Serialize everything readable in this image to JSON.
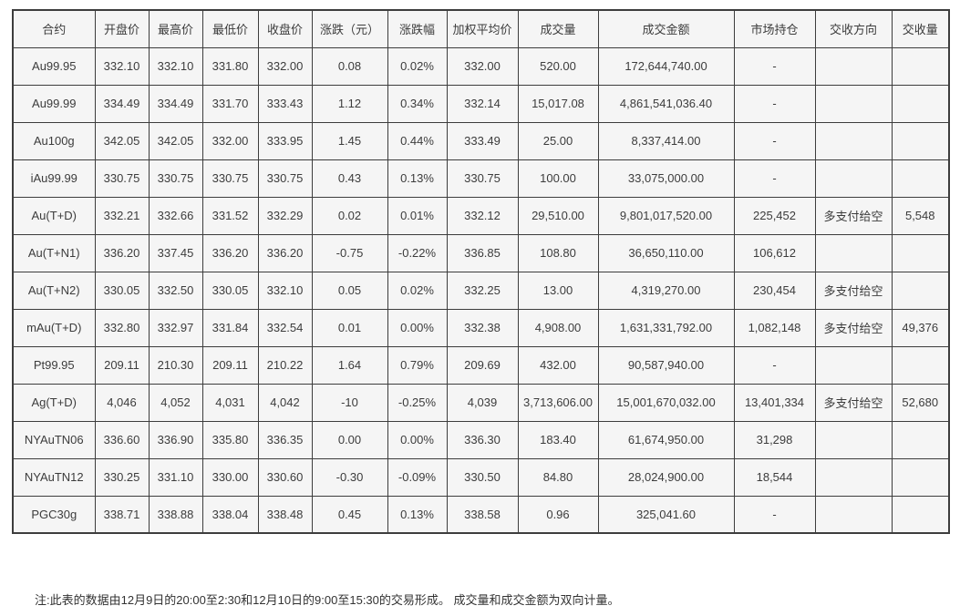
{
  "table": {
    "columns": [
      "合约",
      "开盘价",
      "最高价",
      "最低价",
      "收盘价",
      "涨跌（元）",
      "涨跌幅",
      "加权平均价",
      "成交量",
      "成交金额",
      "市场持仓",
      "交收方向",
      "交收量"
    ],
    "rows": [
      [
        "Au99.95",
        "332.10",
        "332.10",
        "331.80",
        "332.00",
        "0.08",
        "0.02%",
        "332.00",
        "520.00",
        "172,644,740.00",
        "-",
        "",
        ""
      ],
      [
        "Au99.99",
        "334.49",
        "334.49",
        "331.70",
        "333.43",
        "1.12",
        "0.34%",
        "332.14",
        "15,017.08",
        "4,861,541,036.40",
        "-",
        "",
        ""
      ],
      [
        "Au100g",
        "342.05",
        "342.05",
        "332.00",
        "333.95",
        "1.45",
        "0.44%",
        "333.49",
        "25.00",
        "8,337,414.00",
        "-",
        "",
        ""
      ],
      [
        "iAu99.99",
        "330.75",
        "330.75",
        "330.75",
        "330.75",
        "0.43",
        "0.13%",
        "330.75",
        "100.00",
        "33,075,000.00",
        "-",
        "",
        ""
      ],
      [
        "Au(T+D)",
        "332.21",
        "332.66",
        "331.52",
        "332.29",
        "0.02",
        "0.01%",
        "332.12",
        "29,510.00",
        "9,801,017,520.00",
        "225,452",
        "多支付给空",
        "5,548"
      ],
      [
        "Au(T+N1)",
        "336.20",
        "337.45",
        "336.20",
        "336.20",
        "-0.75",
        "-0.22%",
        "336.85",
        "108.80",
        "36,650,110.00",
        "106,612",
        "",
        ""
      ],
      [
        "Au(T+N2)",
        "330.05",
        "332.50",
        "330.05",
        "332.10",
        "0.05",
        "0.02%",
        "332.25",
        "13.00",
        "4,319,270.00",
        "230,454",
        "多支付给空",
        ""
      ],
      [
        "mAu(T+D)",
        "332.80",
        "332.97",
        "331.84",
        "332.54",
        "0.01",
        "0.00%",
        "332.38",
        "4,908.00",
        "1,631,331,792.00",
        "1,082,148",
        "多支付给空",
        "49,376"
      ],
      [
        "Pt99.95",
        "209.11",
        "210.30",
        "209.11",
        "210.22",
        "1.64",
        "0.79%",
        "209.69",
        "432.00",
        "90,587,940.00",
        "-",
        "",
        ""
      ],
      [
        "Ag(T+D)",
        "4,046",
        "4,052",
        "4,031",
        "4,042",
        "-10",
        "-0.25%",
        "4,039",
        "3,713,606.00",
        "15,001,670,032.00",
        "13,401,334",
        "多支付给空",
        "52,680"
      ],
      [
        "NYAuTN06",
        "336.60",
        "336.90",
        "335.80",
        "336.35",
        "0.00",
        "0.00%",
        "336.30",
        "183.40",
        "61,674,950.00",
        "31,298",
        "",
        ""
      ],
      [
        "NYAuTN12",
        "330.25",
        "331.10",
        "330.00",
        "330.60",
        "-0.30",
        "-0.09%",
        "330.50",
        "84.80",
        "28,024,900.00",
        "18,544",
        "",
        ""
      ],
      [
        "PGC30g",
        "338.71",
        "338.88",
        "338.04",
        "338.48",
        "0.45",
        "0.13%",
        "338.58",
        "0.96",
        "325,041.60",
        "-",
        "",
        ""
      ]
    ]
  },
  "note": "注:此表的数据由12月9日的20:00至2:30和12月10日的9:00至15:30的交易形成。 成交量和成交金额为双向计量。",
  "colors": {
    "cell_background": "#f5f5f5",
    "border": "#3d3d3d",
    "text": "#3c3c3c",
    "page_background": "#ffffff"
  }
}
